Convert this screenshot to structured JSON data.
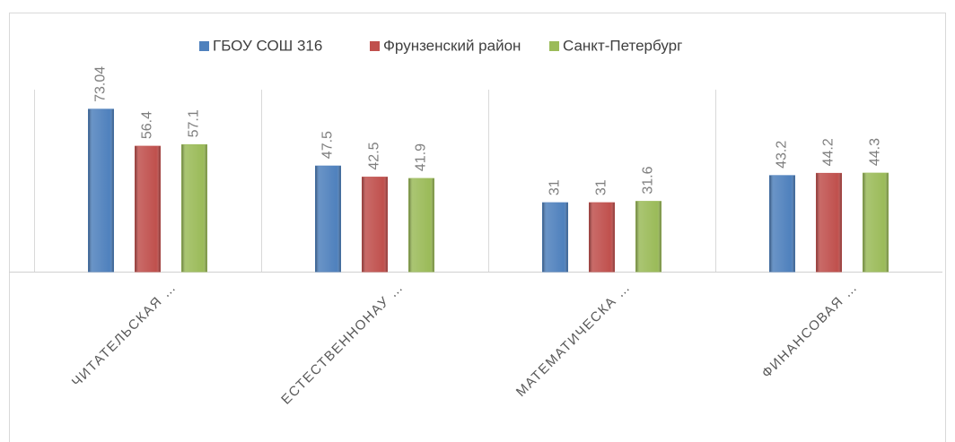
{
  "chart_data": {
    "type": "bar",
    "categories": [
      "ЧИТАТЕЛЬСКАЯ …",
      "ЕСТЕСТВЕННОНАУ …",
      "МАТЕМАТИЧЕСКА …",
      "ФИНАНСОВАЯ …"
    ],
    "series": [
      {
        "name": "ГБОУ СОШ 316",
        "color": "#4f81bd",
        "values": [
          73.04,
          47.5,
          31,
          43.2
        ]
      },
      {
        "name": "Фрунзенский район",
        "color": "#c0504d",
        "values": [
          56.4,
          42.5,
          31,
          44.2
        ]
      },
      {
        "name": "Санкт-Петербург",
        "color": "#9bbb59",
        "values": [
          57.1,
          41.9,
          31.6,
          44.3
        ]
      }
    ],
    "legend": "top"
  }
}
